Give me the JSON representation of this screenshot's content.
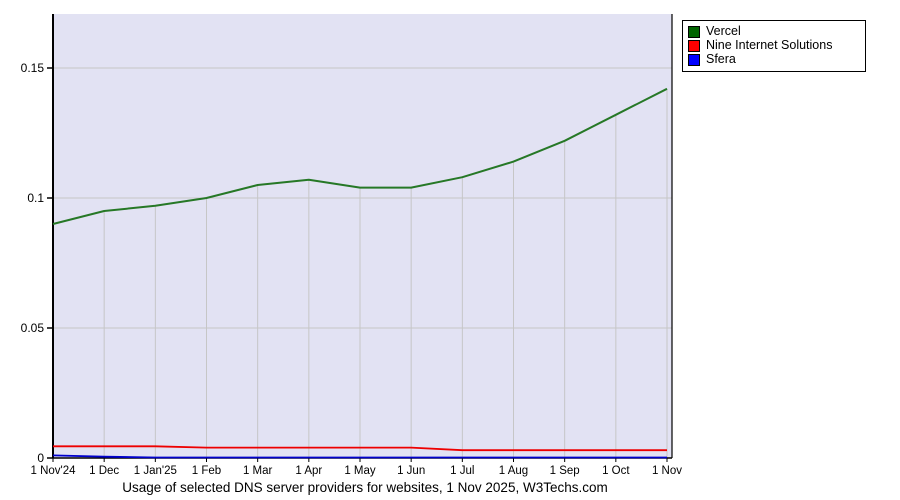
{
  "chart_data": {
    "type": "line",
    "title": "Usage of selected DNS server providers for websites, 1 Nov 2025, W3Techs.com",
    "xlabel": "",
    "ylabel": "",
    "x_labels": [
      "1 Nov'24",
      "1 Dec",
      "1 Jan'25",
      "1 Feb",
      "1 Mar",
      "1 Apr",
      "1 May",
      "1 Jun",
      "1 Jul",
      "1 Aug",
      "1 Sep",
      "1 Oct",
      "1 Nov"
    ],
    "y_ticks": [
      0,
      0.05,
      0.1,
      0.15
    ],
    "y_tick_labels": [
      "0",
      "0.05",
      "0.1",
      "0.15"
    ],
    "ylim": [
      0,
      0.1708
    ],
    "grid": true,
    "legend_position": "outside-top-right",
    "series": [
      {
        "name": "Vercel",
        "swatch_color": "#006400",
        "line_color": "#267826",
        "values": [
          0.09,
          0.095,
          0.097,
          0.1,
          0.105,
          0.107,
          0.104,
          0.104,
          0.108,
          0.114,
          0.122,
          0.132,
          0.142
        ]
      },
      {
        "name": "Nine Internet Solutions",
        "swatch_color": "#ff0000",
        "line_color": "#ee0000",
        "values": [
          0.0045,
          0.0045,
          0.0045,
          0.004,
          0.004,
          0.004,
          0.004,
          0.004,
          0.003,
          0.003,
          0.003,
          0.003,
          0.003
        ]
      },
      {
        "name": "Sfera",
        "swatch_color": "#0000ff",
        "line_color": "#0000cc",
        "values": [
          0.001,
          0.0005,
          0.0002,
          0.0002,
          0.0002,
          0.0002,
          0.0002,
          0.0002,
          0.0002,
          0.0002,
          0.0002,
          0.0002,
          0.0002
        ]
      }
    ],
    "colors": {
      "plot_bg": "#e2e2f3",
      "grid": "#c6c6c6",
      "axis": "#000000",
      "text": "#000000"
    }
  }
}
